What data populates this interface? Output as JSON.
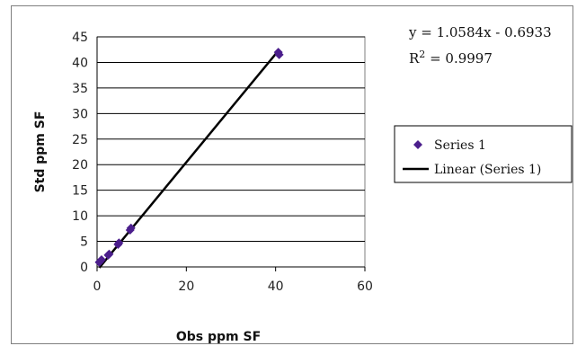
{
  "chart_data": {
    "type": "scatter",
    "xlabel": "Obs ppm SF",
    "ylabel": "Std ppm SF",
    "xlim": [
      0,
      60
    ],
    "ylim": [
      0,
      45
    ],
    "xticks": [
      0,
      20,
      40,
      60
    ],
    "yticks": [
      0,
      5,
      10,
      15,
      20,
      25,
      30,
      35,
      40,
      45
    ],
    "grid": "horizontal",
    "series": [
      {
        "name": "Series 1",
        "color": "#4b1e8c",
        "marker": "diamond",
        "x": [
          0.5,
          0.6,
          1.0,
          2.5,
          2.7,
          4.7,
          4.9,
          7.4,
          7.6,
          40.6,
          40.8
        ],
        "y": [
          0.9,
          1.0,
          1.4,
          2.3,
          2.5,
          4.4,
          4.7,
          7.2,
          7.6,
          42.0,
          41.5
        ]
      }
    ],
    "trendline": {
      "name": "Linear (Series 1)",
      "color": "#000000",
      "slope": 1.0584,
      "intercept": -0.6933,
      "x_range": [
        0.5,
        40.8
      ],
      "equation_text": "y = 1.0584x - 0.6933",
      "r2_prefix": "R",
      "r2_sup": "2",
      "r2_suffix": " = 0.9997"
    },
    "legend": {
      "position": "right",
      "entries": [
        "Series 1",
        "Linear (Series 1)"
      ]
    }
  }
}
